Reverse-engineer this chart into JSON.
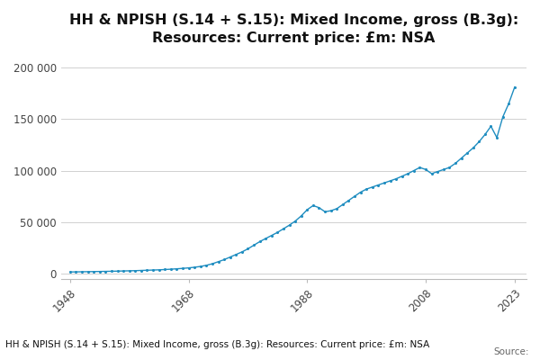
{
  "title": "HH & NPISH (S.14 + S.15): Mixed Income, gross (B.3g):\nResources: Current price: £m: NSA",
  "footer_text": "HH & NPISH (S.14 + S.15): Mixed Income, gross (B.3g): Resources: Current price: £m: NSA",
  "source_text": "Source:",
  "line_color": "#1f8dc0",
  "background_color": "#ffffff",
  "grid_color": "#d0d0d0",
  "title_fontsize": 11.5,
  "years": [
    1948,
    1949,
    1950,
    1951,
    1952,
    1953,
    1954,
    1955,
    1956,
    1957,
    1958,
    1959,
    1960,
    1961,
    1962,
    1963,
    1964,
    1965,
    1966,
    1967,
    1968,
    1969,
    1970,
    1971,
    1972,
    1973,
    1974,
    1975,
    1976,
    1977,
    1978,
    1979,
    1980,
    1981,
    1982,
    1983,
    1984,
    1985,
    1986,
    1987,
    1988,
    1989,
    1990,
    1991,
    1992,
    1993,
    1994,
    1995,
    1996,
    1997,
    1998,
    1999,
    2000,
    2001,
    2002,
    2003,
    2004,
    2005,
    2006,
    2007,
    2008,
    2009,
    2010,
    2011,
    2012,
    2013,
    2014,
    2015,
    2016,
    2017,
    2018,
    2019,
    2020,
    2021,
    2022,
    2023
  ],
  "values": [
    1500,
    1600,
    1700,
    1800,
    1900,
    2000,
    2100,
    2200,
    2350,
    2500,
    2650,
    2800,
    3000,
    3200,
    3400,
    3600,
    3900,
    4200,
    4600,
    5000,
    5500,
    6100,
    6900,
    8000,
    9500,
    11500,
    13500,
    16000,
    18500,
    21000,
    24000,
    27500,
    31000,
    34000,
    37000,
    40000,
    43500,
    47000,
    51000,
    56000,
    62000,
    66000,
    64000,
    60000,
    61000,
    63000,
    67000,
    71000,
    75000,
    79000,
    82000,
    84000,
    86000,
    88000,
    90000,
    92000,
    94500,
    97000,
    100000,
    103000,
    101000,
    97000,
    99000,
    101000,
    103000,
    107000,
    112000,
    117000,
    122000,
    128000,
    135000,
    143000,
    132000,
    152000,
    165000,
    181000
  ],
  "yticks": [
    0,
    50000,
    100000,
    150000,
    200000
  ],
  "ytick_labels": [
    "0",
    "50 000",
    "100 000",
    "150 000",
    "200 000"
  ],
  "xticks": [
    1948,
    1968,
    1988,
    2008,
    2023
  ],
  "xtick_labels": [
    "1948",
    "1968",
    "1988",
    "2008",
    "2023"
  ],
  "ylim": [
    -5000,
    215000
  ],
  "xlim": [
    1946.5,
    2025
  ]
}
